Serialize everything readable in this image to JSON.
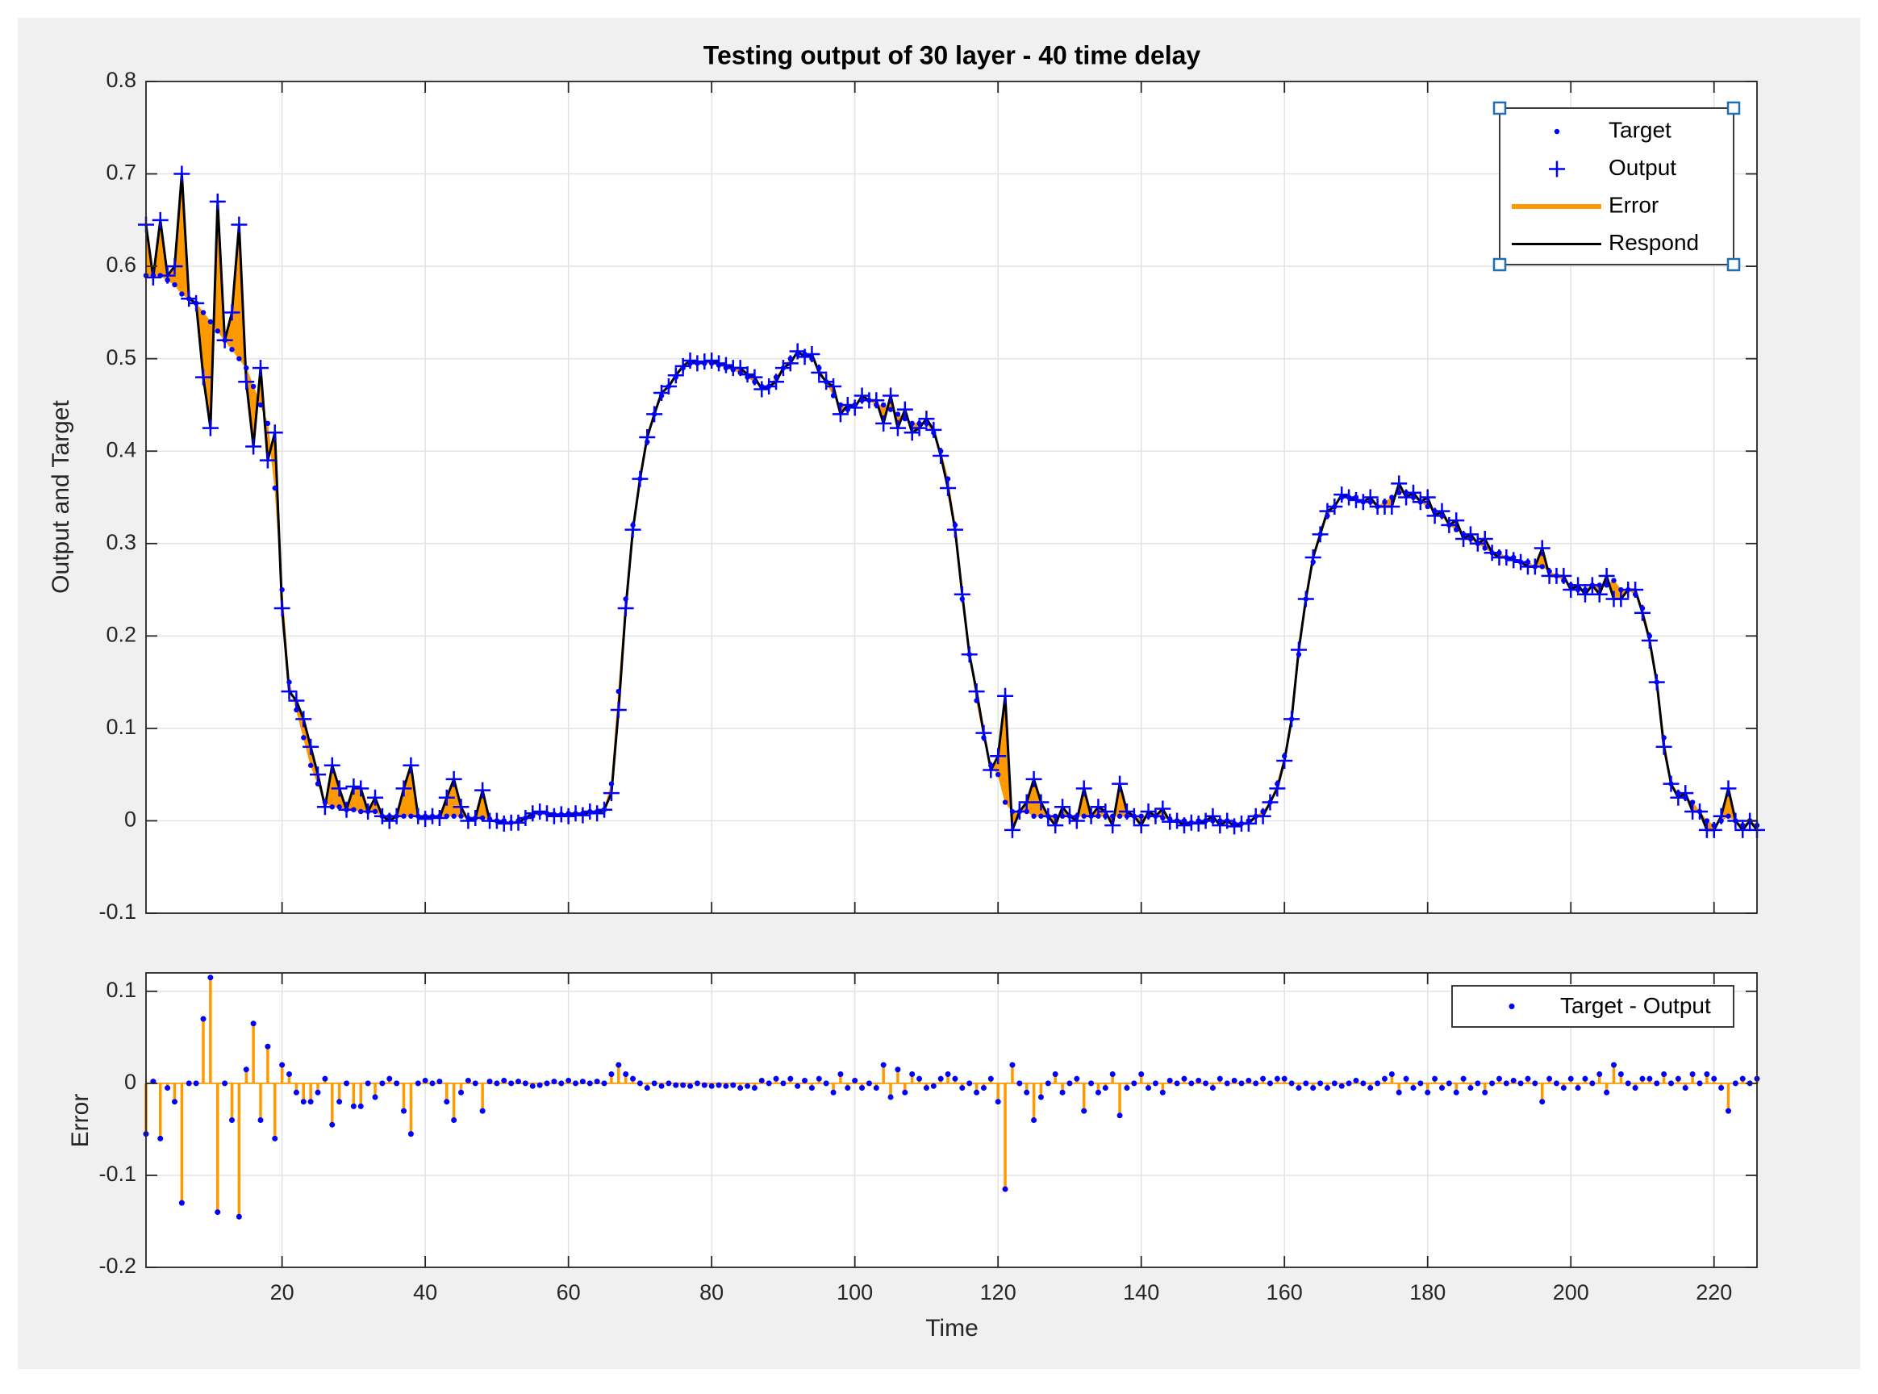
{
  "chart_data": [
    {
      "type": "line",
      "title": "Testing output of 30 layer - 40 time delay",
      "ylabel": "Output and Target",
      "x": [
        1,
        2,
        3,
        4,
        5,
        6,
        7,
        8,
        9,
        10,
        11,
        12,
        13,
        14,
        15,
        16,
        17,
        18,
        19,
        20,
        21,
        22,
        23,
        24,
        25,
        26,
        27,
        28,
        29,
        30,
        31,
        32,
        33,
        34,
        35,
        36,
        37,
        38,
        39,
        40,
        41,
        42,
        43,
        44,
        45,
        46,
        47,
        48,
        49,
        50,
        51,
        52,
        53,
        54,
        55,
        56,
        57,
        58,
        59,
        60,
        61,
        62,
        63,
        64,
        65,
        66,
        67,
        68,
        69,
        70,
        71,
        72,
        73,
        74,
        75,
        76,
        77,
        78,
        79,
        80,
        81,
        82,
        83,
        84,
        85,
        86,
        87,
        88,
        89,
        90,
        91,
        92,
        93,
        94,
        95,
        96,
        97,
        98,
        99,
        100,
        101,
        102,
        103,
        104,
        105,
        106,
        107,
        108,
        109,
        110,
        111,
        112,
        113,
        114,
        115,
        116,
        117,
        118,
        119,
        120,
        121,
        122,
        123,
        124,
        125,
        126,
        127,
        128,
        129,
        130,
        131,
        132,
        133,
        134,
        135,
        136,
        137,
        138,
        139,
        140,
        141,
        142,
        143,
        144,
        145,
        146,
        147,
        148,
        149,
        150,
        151,
        152,
        153,
        154,
        155,
        156,
        157,
        158,
        159,
        160,
        161,
        162,
        163,
        164,
        165,
        166,
        167,
        168,
        169,
        170,
        171,
        172,
        173,
        174,
        175,
        176,
        177,
        178,
        179,
        180,
        181,
        182,
        183,
        184,
        185,
        186,
        187,
        188,
        189,
        190,
        191,
        192,
        193,
        194,
        195,
        196,
        197,
        198,
        199,
        200,
        201,
        202,
        203,
        204,
        205,
        206,
        207,
        208,
        209,
        210,
        211,
        212,
        213,
        214,
        215,
        216,
        217,
        218,
        219,
        220,
        221,
        222,
        223,
        224,
        225,
        226
      ],
      "series": [
        {
          "name": "Target",
          "color": "#0000ff",
          "values": [
            0.59,
            0.59,
            0.59,
            0.585,
            0.58,
            0.57,
            0.565,
            0.56,
            0.55,
            0.54,
            0.53,
            0.52,
            0.51,
            0.5,
            0.49,
            0.47,
            0.45,
            0.43,
            0.36,
            0.25,
            0.15,
            0.12,
            0.09,
            0.06,
            0.04,
            0.02,
            0.015,
            0.015,
            0.012,
            0.012,
            0.01,
            0.01,
            0.01,
            0.005,
            0.005,
            0.005,
            0.005,
            0.005,
            0.005,
            0.005,
            0.005,
            0.005,
            0.005,
            0.005,
            0.005,
            0.003,
            0.003,
            0.003,
            0.002,
            0,
            0,
            -0.002,
            0,
            0.003,
            0.005,
            0.008,
            0.008,
            0.007,
            0.007,
            0.008,
            0.008,
            0.008,
            0.01,
            0.01,
            0.012,
            0.04,
            0.14,
            0.24,
            0.32,
            0.37,
            0.41,
            0.44,
            0.46,
            0.47,
            0.48,
            0.49,
            0.495,
            0.495,
            0.495,
            0.495,
            0.493,
            0.49,
            0.488,
            0.485,
            0.48,
            0.475,
            0.47,
            0.47,
            0.48,
            0.49,
            0.5,
            0.505,
            0.505,
            0.5,
            0.49,
            0.475,
            0.46,
            0.45,
            0.445,
            0.45,
            0.455,
            0.455,
            0.45,
            0.45,
            0.445,
            0.44,
            0.435,
            0.43,
            0.43,
            0.43,
            0.42,
            0.4,
            0.37,
            0.32,
            0.24,
            0.18,
            0.13,
            0.09,
            0.06,
            0.05,
            0.02,
            0.01,
            0.01,
            0.01,
            0.005,
            0.005,
            0.005,
            0.005,
            0.005,
            0.005,
            0.005,
            0.005,
            0.005,
            0.005,
            0.005,
            0.005,
            0.005,
            0.005,
            0.005,
            0.005,
            0.005,
            0.005,
            0.003,
            0.002,
            0,
            0,
            -0.002,
            0,
            0,
            0,
            0,
            0,
            -0.003,
            -0.003,
            0,
            0.005,
            0.01,
            0.02,
            0.04,
            0.07,
            0.11,
            0.18,
            0.24,
            0.28,
            0.31,
            0.33,
            0.34,
            0.35,
            0.35,
            0.35,
            0.345,
            0.345,
            0.34,
            0.345,
            0.35,
            0.355,
            0.355,
            0.35,
            0.345,
            0.34,
            0.335,
            0.33,
            0.32,
            0.315,
            0.31,
            0.305,
            0.3,
            0.295,
            0.29,
            0.29,
            0.285,
            0.285,
            0.28,
            0.28,
            0.275,
            0.275,
            0.27,
            0.265,
            0.26,
            0.255,
            0.25,
            0.25,
            0.255,
            0.255,
            0.255,
            0.26,
            0.25,
            0.25,
            0.245,
            0.23,
            0.2,
            0.15,
            0.09,
            0.04,
            0.03,
            0.025,
            0.02,
            0.01,
            0,
            -0.005,
            0,
            0.005,
            0,
            -0.005,
            0,
            -0.005
          ]
        },
        {
          "name": "Output",
          "color": "#0000ff",
          "values": [
            0.645,
            0.588,
            0.65,
            0.59,
            0.6,
            0.7,
            0.565,
            0.56,
            0.48,
            0.425,
            0.67,
            0.52,
            0.55,
            0.645,
            0.475,
            0.405,
            0.49,
            0.39,
            0.42,
            0.23,
            0.14,
            0.13,
            0.11,
            0.08,
            0.05,
            0.015,
            0.06,
            0.035,
            0.012,
            0.037,
            0.035,
            0.01,
            0.025,
            0.005,
            0,
            0.005,
            0.035,
            0.06,
            0.005,
            0.002,
            0.005,
            0.003,
            0.025,
            0.045,
            0.015,
            0,
            0.003,
            0.033,
            0,
            0,
            -0.003,
            -0.002,
            -0.002,
            0.003,
            0.008,
            0.01,
            0.008,
            0.005,
            0.007,
            0.005,
            0.008,
            0.006,
            0.01,
            0.008,
            0.012,
            0.03,
            0.12,
            0.23,
            0.315,
            0.37,
            0.415,
            0.44,
            0.463,
            0.47,
            0.482,
            0.492,
            0.498,
            0.495,
            0.497,
            0.498,
            0.495,
            0.493,
            0.49,
            0.49,
            0.483,
            0.48,
            0.467,
            0.47,
            0.475,
            0.49,
            0.495,
            0.508,
            0.502,
            0.505,
            0.485,
            0.475,
            0.47,
            0.44,
            0.45,
            0.447,
            0.46,
            0.455,
            0.455,
            0.43,
            0.46,
            0.425,
            0.445,
            0.42,
            0.425,
            0.435,
            0.423,
            0.395,
            0.36,
            0.315,
            0.245,
            0.18,
            0.14,
            0.095,
            0.055,
            0.07,
            0.135,
            -0.01,
            0.01,
            0.02,
            0.045,
            0.02,
            0.005,
            -0.005,
            0.015,
            0.005,
            0,
            0.035,
            0.005,
            0.015,
            0.01,
            -0.005,
            0.04,
            0.01,
            0.005,
            -0.005,
            0.01,
            0.005,
            0.013,
            -0.001,
            0,
            -0.005,
            -0.002,
            -0.003,
            0,
            0.005,
            -0.005,
            0,
            -0.006,
            -0.003,
            -0.003,
            0.005,
            0.005,
            0.02,
            0.035,
            0.065,
            0.11,
            0.185,
            0.24,
            0.285,
            0.31,
            0.335,
            0.34,
            0.353,
            0.35,
            0.347,
            0.345,
            0.35,
            0.34,
            0.34,
            0.34,
            0.365,
            0.35,
            0.355,
            0.345,
            0.35,
            0.33,
            0.335,
            0.32,
            0.325,
            0.305,
            0.31,
            0.3,
            0.305,
            0.29,
            0.285,
            0.285,
            0.282,
            0.28,
            0.275,
            0.275,
            0.295,
            0.265,
            0.265,
            0.265,
            0.25,
            0.255,
            0.245,
            0.255,
            0.245,
            0.265,
            0.24,
            0.24,
            0.25,
            0.25,
            0.225,
            0.195,
            0.15,
            0.08,
            0.04,
            0.025,
            0.03,
            0.01,
            0.01,
            -0.01,
            -0.01,
            0.005,
            0.035,
            0,
            -0.01,
            0,
            -0.01
          ]
        },
        {
          "name": "Error",
          "color": "#ff9900"
        },
        {
          "name": "Respond",
          "color": "#000000"
        }
      ],
      "xlim": [
        1,
        226
      ],
      "xticks": [
        20,
        40,
        60,
        80,
        100,
        120,
        140,
        160,
        180,
        200,
        220
      ],
      "ylim": [
        -0.1,
        0.8
      ],
      "yticks": [
        -0.1,
        0,
        0.1,
        0.2,
        0.3,
        0.4,
        0.5,
        0.6,
        0.7,
        0.8
      ],
      "grid": true,
      "legend": "northeast"
    },
    {
      "type": "stem",
      "xlabel": "Time",
      "ylabel": "Error",
      "stem_color": "#ff9900",
      "series": [
        {
          "name": "Target - Output",
          "color": "#0000ff",
          "values": [
            -0.055,
            0.002,
            -0.06,
            -0.005,
            -0.02,
            -0.13,
            0,
            0,
            0.07,
            0.115,
            -0.14,
            0,
            -0.04,
            -0.145,
            0.015,
            0.065,
            -0.04,
            0.04,
            -0.06,
            0.02,
            0.01,
            -0.01,
            -0.02,
            -0.02,
            -0.01,
            0.005,
            -0.045,
            -0.02,
            0,
            -0.025,
            -0.025,
            0,
            -0.015,
            0,
            0.005,
            0,
            -0.03,
            -0.055,
            0,
            0.003,
            0,
            0.002,
            -0.02,
            -0.04,
            -0.01,
            0.003,
            0,
            -0.03,
            0.002,
            0,
            0.003,
            0,
            0.002,
            0,
            -0.003,
            -0.002,
            0,
            0.002,
            0,
            0.003,
            0,
            0.002,
            0,
            0.002,
            0,
            0.01,
            0.02,
            0.01,
            0.005,
            0,
            -0.005,
            0,
            -0.003,
            0,
            -0.002,
            -0.002,
            -0.003,
            0,
            -0.002,
            -0.003,
            -0.002,
            -0.003,
            -0.002,
            -0.005,
            -0.003,
            -0.005,
            0.003,
            0,
            0.005,
            0,
            0.005,
            -0.003,
            0.003,
            -0.005,
            0.005,
            0,
            -0.01,
            0.01,
            -0.005,
            0.003,
            -0.005,
            0,
            -0.005,
            0.02,
            -0.015,
            0.015,
            -0.01,
            0.01,
            0.005,
            -0.005,
            -0.003,
            0.005,
            0.01,
            0.005,
            -0.005,
            0,
            -0.01,
            -0.005,
            0.005,
            -0.02,
            -0.115,
            0.02,
            0,
            -0.01,
            -0.04,
            -0.015,
            0,
            0.01,
            -0.01,
            0,
            0.005,
            -0.03,
            0,
            -0.01,
            -0.005,
            0.01,
            -0.035,
            -0.005,
            0,
            0.01,
            -0.005,
            0,
            -0.01,
            0.003,
            0,
            0.005,
            0,
            0.003,
            0,
            -0.005,
            0.005,
            0,
            0.003,
            0,
            0.003,
            0,
            0.005,
            0,
            0.005,
            0.005,
            0,
            -0.005,
            0,
            -0.005,
            0,
            -0.005,
            0,
            -0.003,
            0,
            0.003,
            0,
            -0.005,
            0,
            0.005,
            0.01,
            -0.01,
            0.005,
            -0.005,
            0,
            -0.01,
            0.005,
            -0.005,
            0,
            -0.01,
            0.005,
            -0.005,
            0,
            -0.01,
            0,
            0.005,
            0,
            0.003,
            0,
            0.005,
            0,
            -0.02,
            0.005,
            0,
            -0.005,
            0.005,
            -0.005,
            0.005,
            0,
            0.01,
            -0.01,
            0.02,
            0.01,
            0,
            -0.005,
            0.005,
            0.005,
            0,
            0.01,
            0,
            0.005,
            -0.005,
            0.01,
            0,
            0.01,
            0.005,
            -0.005,
            -0.03,
            0,
            0.005,
            0,
            0.005
          ]
        }
      ],
      "xlim": [
        1,
        226
      ],
      "xticks": [
        20,
        40,
        60,
        80,
        100,
        120,
        140,
        160,
        180,
        200,
        220
      ],
      "ylim": [
        -0.2,
        0.12
      ],
      "yticks": [
        -0.2,
        -0.1,
        0,
        0.1
      ],
      "grid": true,
      "legend": "northeast"
    }
  ]
}
